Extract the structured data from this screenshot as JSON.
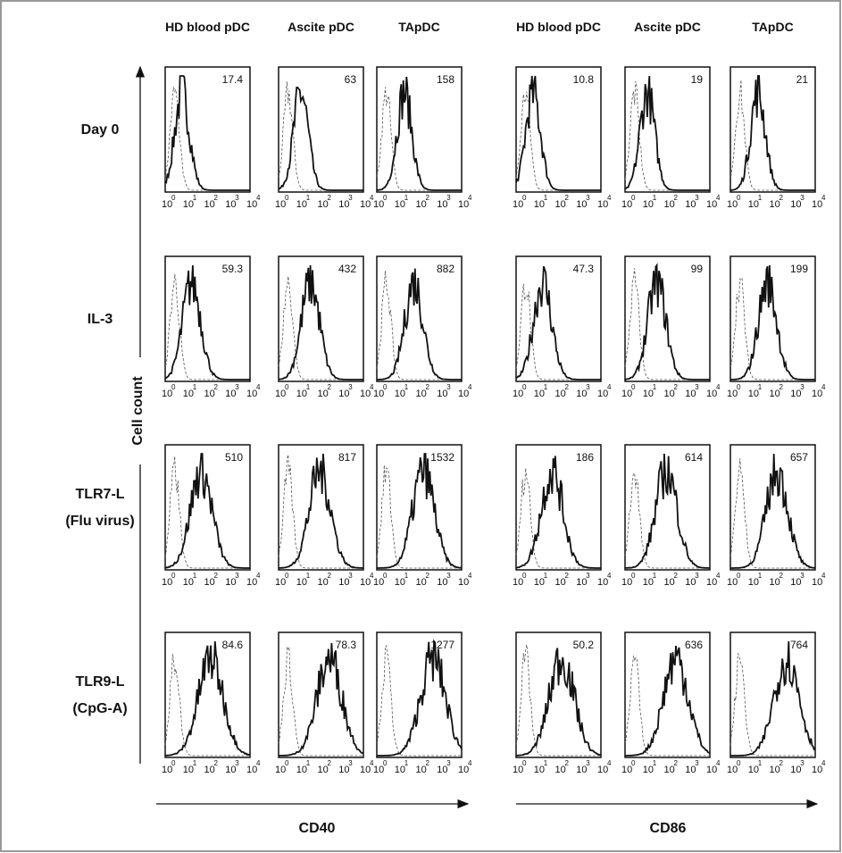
{
  "columns": [
    {
      "marker": "CD40",
      "panels": [
        "HD blood pDC",
        "Ascite pDC",
        "TApDC"
      ]
    },
    {
      "marker": "CD86",
      "panels": [
        "HD blood pDC",
        "Ascite pDC",
        "TApDC"
      ]
    }
  ],
  "rows": [
    {
      "label": [
        "Day 0"
      ]
    },
    {
      "label": [
        "IL-3"
      ]
    },
    {
      "label": [
        "TLR7-L",
        "(Flu virus)"
      ]
    },
    {
      "label": [
        "TLR9-L",
        "(CpG-A)"
      ]
    }
  ],
  "y_axis_label": "Cell count",
  "x_tick_base": "10",
  "x_tick_exponents": [
    "0",
    "1",
    "2",
    "3",
    "4"
  ],
  "values": [
    [
      17.4,
      63,
      158,
      10.8,
      19,
      21
    ],
    [
      59.3,
      432,
      882,
      47.3,
      99,
      199
    ],
    [
      510,
      817,
      1532,
      186,
      614,
      657
    ],
    [
      84.6,
      78.3,
      1277,
      50.2,
      636,
      764
    ]
  ]
}
